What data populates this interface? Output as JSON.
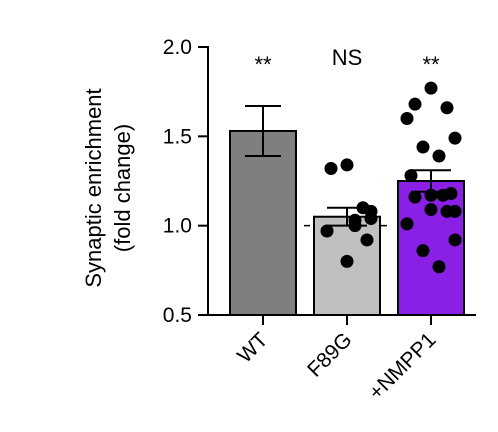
{
  "chart_data": {
    "type": "bar",
    "ylabel_lines": [
      "Synaptic enrichment",
      "(fold change)"
    ],
    "ylim": [
      0.5,
      2.0
    ],
    "yticks": [
      0.5,
      1.0,
      1.5,
      2.0
    ],
    "ytick_labels": [
      "0.5",
      "1.0",
      "1.5",
      "2.0"
    ],
    "reference_line": 1.0,
    "categories": [
      "WT",
      "F89G",
      "+NMPP1"
    ],
    "significance": [
      "**",
      "NS",
      "**"
    ],
    "colors": [
      "#7f7f7f",
      "#c0c0c0",
      "#8a1fe6"
    ],
    "means": [
      1.53,
      1.05,
      1.25
    ],
    "error": [
      {
        "low": 1.39,
        "high": 1.67
      },
      {
        "low": 1.0,
        "high": 1.1
      },
      {
        "low": 1.19,
        "high": 1.31
      }
    ],
    "points": [
      [],
      [
        1.34,
        1.32,
        1.1,
        1.08,
        1.04,
        1.03,
        1.0,
        0.97,
        0.92,
        0.8
      ],
      [
        1.77,
        1.68,
        1.66,
        1.6,
        1.49,
        1.44,
        1.39,
        1.28,
        1.18,
        1.17,
        1.17,
        1.16,
        1.09,
        1.08,
        1.08,
        1.01,
        0.92,
        0.86,
        0.77
      ]
    ]
  }
}
